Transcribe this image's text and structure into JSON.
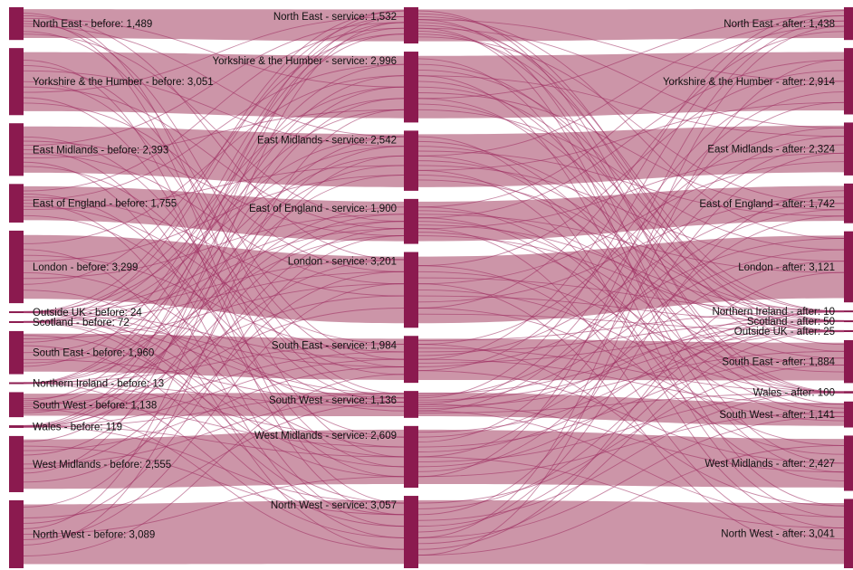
{
  "chart_data": {
    "type": "sankey",
    "colors": {
      "node": "#8b1a4f",
      "link": "#c6899f",
      "cross_link": "#9c2a5e"
    },
    "columns": [
      {
        "stage": "before",
        "nodes": [
          {
            "name": "North East",
            "label": "North East - before: 1,489",
            "value": 1489
          },
          {
            "name": "Yorkshire & the Humber",
            "label": "Yorkshire & the Humber - before: 3,051",
            "value": 3051
          },
          {
            "name": "East Midlands",
            "label": "East Midlands - before: 2,393",
            "value": 2393
          },
          {
            "name": "East of England",
            "label": "East of England - before: 1,755",
            "value": 1755
          },
          {
            "name": "London",
            "label": "London - before: 3,299",
            "value": 3299
          },
          {
            "name": "Outside UK",
            "label": "Outside UK - before: 24",
            "value": 24
          },
          {
            "name": "Scotland",
            "label": "Scotland - before: 72",
            "value": 72
          },
          {
            "name": "South East",
            "label": "South East - before: 1,960",
            "value": 1960
          },
          {
            "name": "Northern Ireland",
            "label": "Northern Ireland - before: 13",
            "value": 13
          },
          {
            "name": "South West",
            "label": "South West - before: 1,138",
            "value": 1138
          },
          {
            "name": "Wales",
            "label": "Wales - before: 119",
            "value": 119
          },
          {
            "name": "West Midlands",
            "label": "West Midlands - before: 2,555",
            "value": 2555
          },
          {
            "name": "North West",
            "label": "North West - before: 3,089",
            "value": 3089
          }
        ]
      },
      {
        "stage": "service",
        "nodes": [
          {
            "name": "North East",
            "label": "North East - service: 1,532",
            "value": 1532
          },
          {
            "name": "Yorkshire & the Humber",
            "label": "Yorkshire & the Humber - service: 2,996",
            "value": 2996
          },
          {
            "name": "East Midlands",
            "label": "East Midlands - service: 2,542",
            "value": 2542
          },
          {
            "name": "East of England",
            "label": "East of England - service: 1,900",
            "value": 1900
          },
          {
            "name": "London",
            "label": "London - service: 3,201",
            "value": 3201
          },
          {
            "name": "South East",
            "label": "South East - service: 1,984",
            "value": 1984
          },
          {
            "name": "South West",
            "label": "South West - service: 1,136",
            "value": 1136
          },
          {
            "name": "West Midlands",
            "label": "West Midlands - service: 2,609",
            "value": 2609
          },
          {
            "name": "North West",
            "label": "North West - service: 3,057",
            "value": 3057
          }
        ]
      },
      {
        "stage": "after",
        "nodes": [
          {
            "name": "North East",
            "label": "North East - after: 1,438",
            "value": 1438
          },
          {
            "name": "Yorkshire & the Humber",
            "label": "Yorkshire & the Humber - after: 2,914",
            "value": 2914
          },
          {
            "name": "East Midlands",
            "label": "East Midlands - after: 2,324",
            "value": 2324
          },
          {
            "name": "East of England",
            "label": "East of England - after: 1,742",
            "value": 1742
          },
          {
            "name": "London",
            "label": "London - after: 3,121",
            "value": 3121
          },
          {
            "name": "Northern Ireland",
            "label": "Northern Ireland - after: 10",
            "value": 10
          },
          {
            "name": "Scotland",
            "label": "Scotland - after: 50",
            "value": 50
          },
          {
            "name": "Outside UK",
            "label": "Outside UK - after: 25",
            "value": 25
          },
          {
            "name": "South East",
            "label": "South East - after: 1,884",
            "value": 1884
          },
          {
            "name": "Wales",
            "label": "Wales - after: 100",
            "value": 100
          },
          {
            "name": "South West",
            "label": "South West - after: 1,141",
            "value": 1141
          },
          {
            "name": "West Midlands",
            "label": "West Midlands - after: 2,427",
            "value": 2427
          },
          {
            "name": "North West",
            "label": "North West - after: 3,041",
            "value": 3041
          }
        ]
      }
    ]
  }
}
